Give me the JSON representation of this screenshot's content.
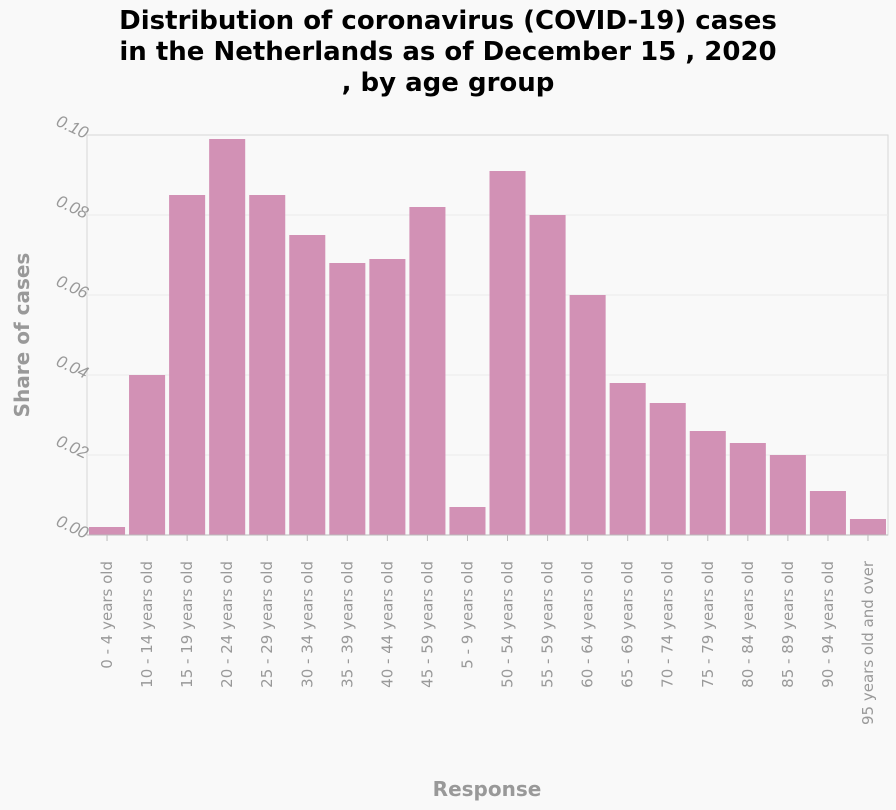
{
  "chart_data": {
    "type": "bar",
    "title": "Distribution of coronavirus (COVID-19) cases\nin the Netherlands as of December 15 , 2020\n, by age group",
    "xlabel": "Response",
    "ylabel": "Share of cases",
    "ylim": [
      0,
      0.1
    ],
    "yticks": [
      "0.00",
      "0.02",
      "0.04",
      "0.06",
      "0.08",
      "0.10"
    ],
    "grid": true,
    "bar_color": "#d291b5",
    "categories": [
      "0 - 4 years old",
      "10 - 14 years old",
      "15 - 19 years old",
      "20 - 24 years old",
      "25 - 29 years old",
      "30 - 34 years old",
      "35 - 39 years old",
      "40 - 44 years old",
      "45 - 59 years old",
      "5 - 9 years old",
      "50 - 54 years old",
      "55 - 59 years old",
      "60 - 64 years old",
      "65 - 69 years old",
      "70 - 74 years old",
      "75 - 79 years old",
      "80 - 84 years old",
      "85 - 89 years old",
      "90 - 94 years old",
      "95 years old and over"
    ],
    "values": [
      0.002,
      0.04,
      0.085,
      0.099,
      0.085,
      0.075,
      0.068,
      0.069,
      0.082,
      0.007,
      0.091,
      0.08,
      0.06,
      0.038,
      0.033,
      0.026,
      0.023,
      0.02,
      0.011,
      0.004
    ]
  }
}
